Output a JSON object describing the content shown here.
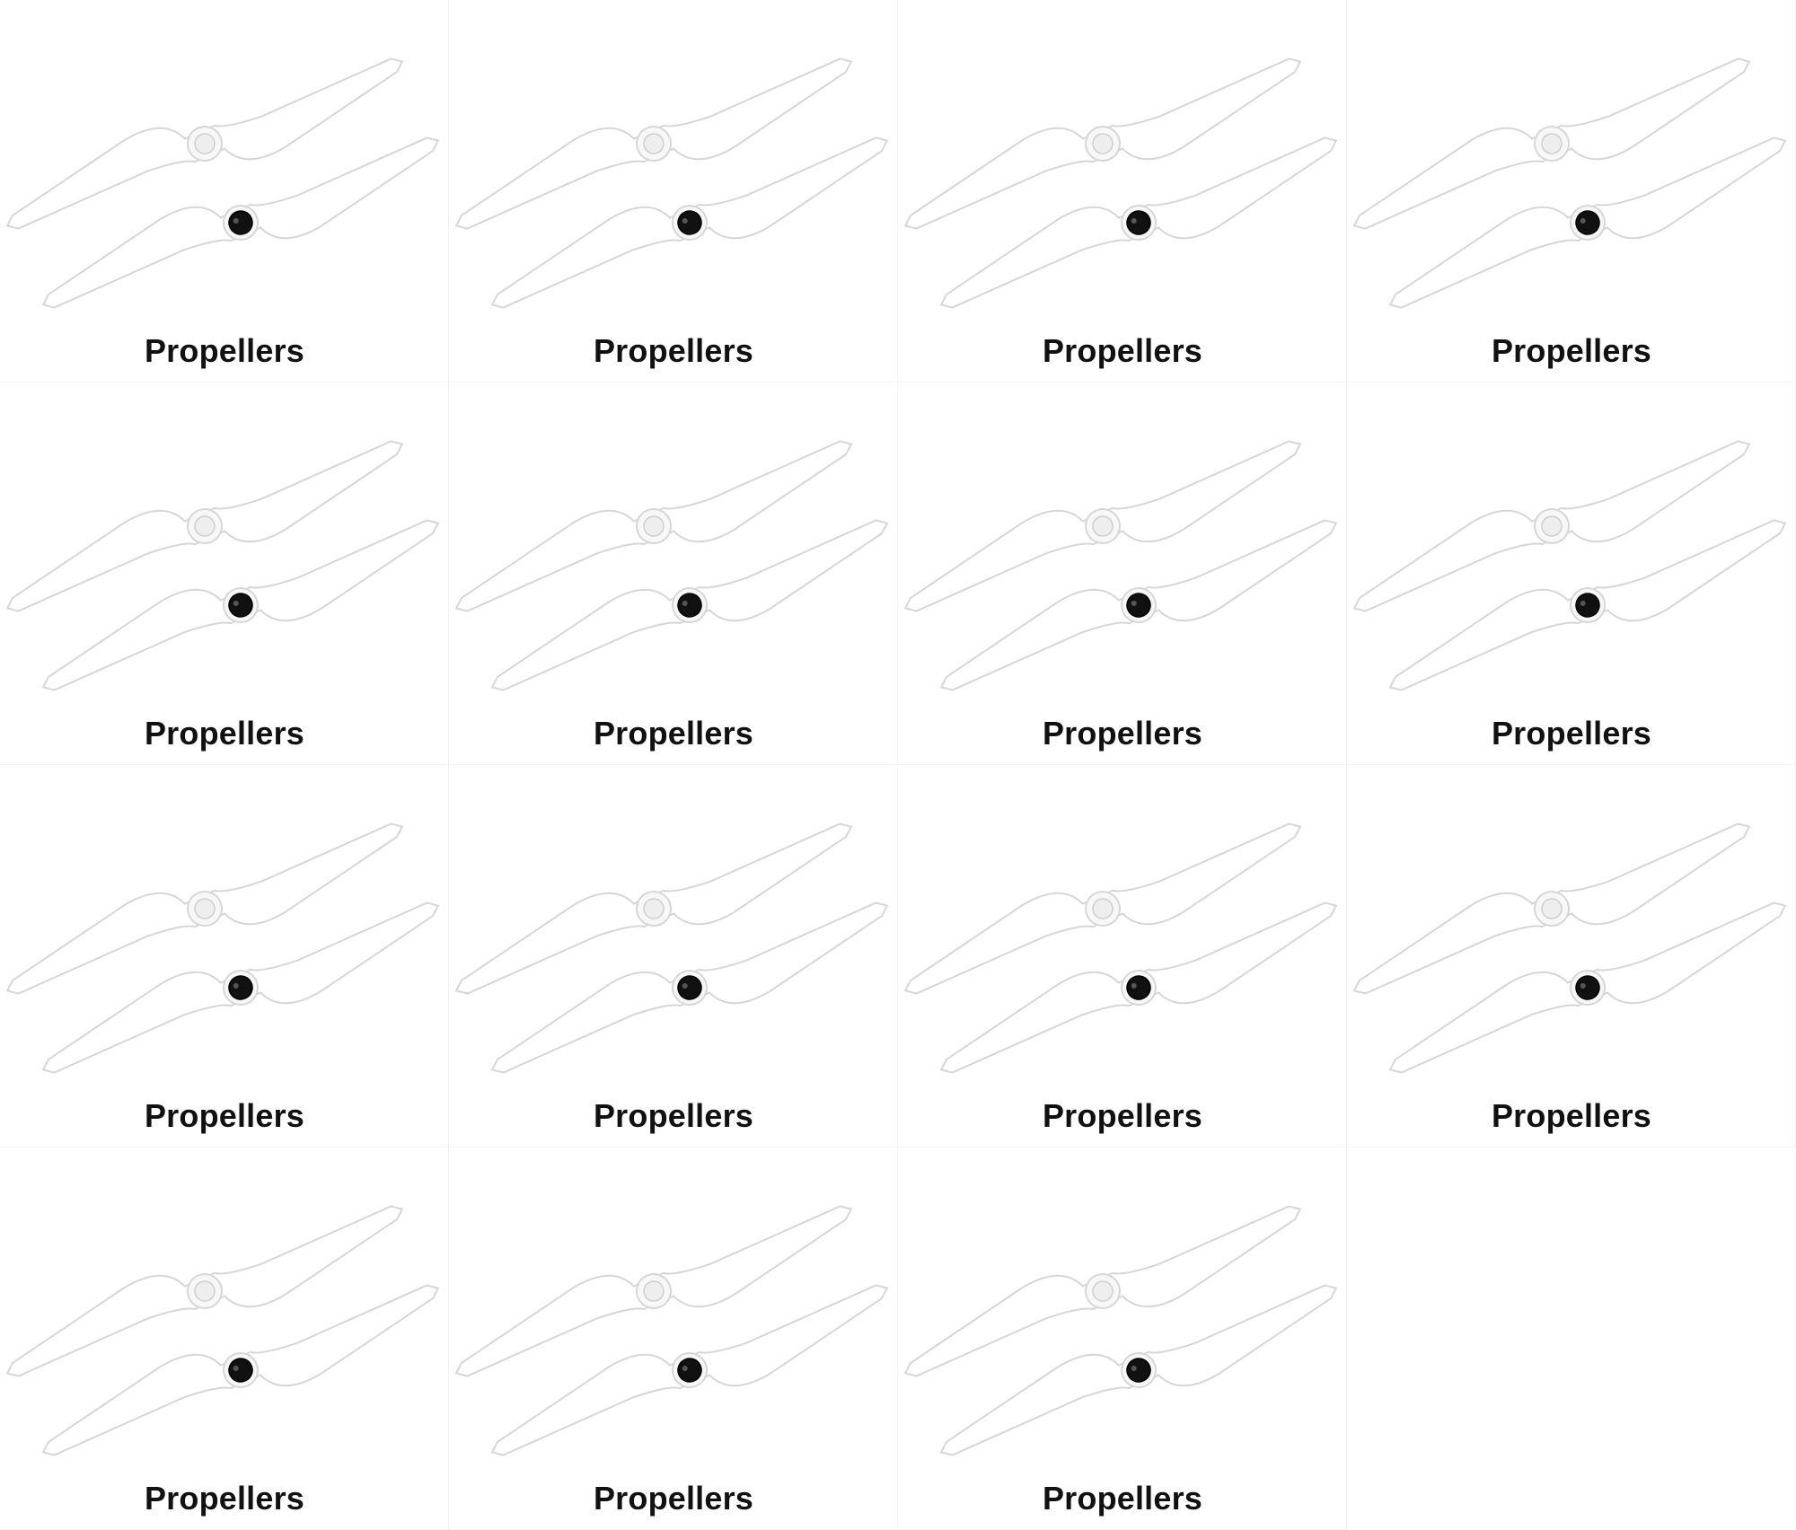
{
  "tiles": [
    {
      "caption": "Propellers"
    },
    {
      "caption": "Propellers"
    },
    {
      "caption": "Propellers"
    },
    {
      "caption": "Propellers"
    },
    {
      "caption": "Propellers"
    },
    {
      "caption": "Propellers"
    },
    {
      "caption": "Propellers"
    },
    {
      "caption": "Propellers"
    },
    {
      "caption": "Propellers"
    },
    {
      "caption": "Propellers"
    },
    {
      "caption": "Propellers"
    },
    {
      "caption": "Propellers"
    },
    {
      "caption": "Propellers"
    },
    {
      "caption": "Propellers"
    },
    {
      "caption": "Propellers"
    }
  ],
  "colors": {
    "blade_fill": "#ffffff",
    "blade_edge": "#d6d6d6",
    "hub_light": "#eeeeee",
    "hub_dark": "#111111",
    "caption_text": "#111111"
  }
}
